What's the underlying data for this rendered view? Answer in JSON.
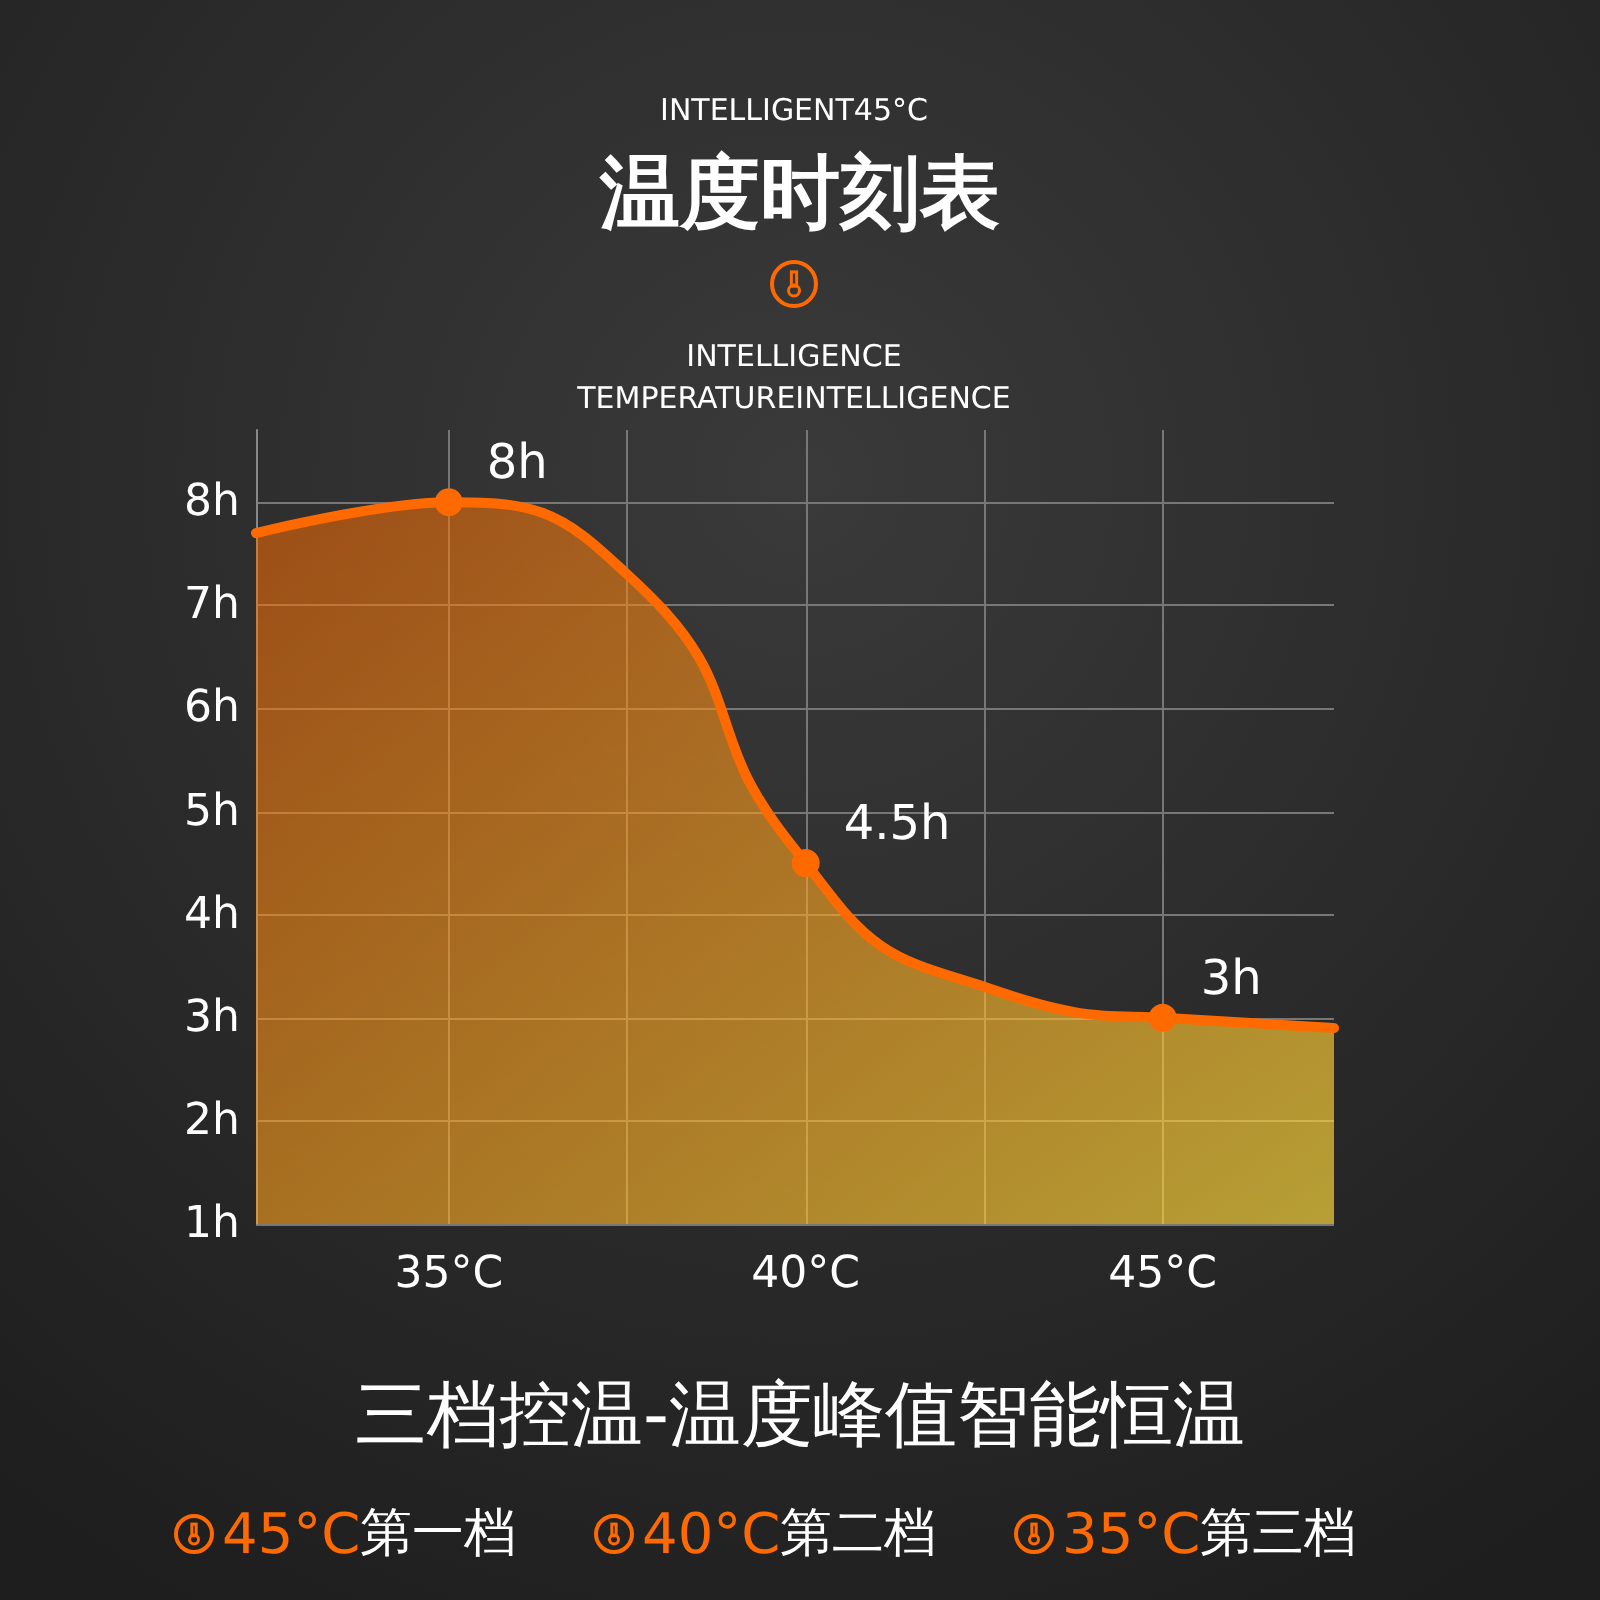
{
  "chart_data": {
    "type": "area",
    "title": "温度时刻表",
    "subtitle": "三档控温-温度峰值智能恒温",
    "annotations": [
      "INTELLIGENT45°C",
      "INTELLIGENCE",
      "TEMPERATUREINTELLIGENCE",
      "45°C第一档",
      "40°C第二档",
      "35°C第三档"
    ],
    "x": [
      32.3,
      35,
      36.3,
      37.5,
      38.5,
      39.2,
      40,
      41.05,
      42.5,
      43.8,
      45,
      47.4
    ],
    "series": [
      {
        "color": "#ff6a00",
        "values": [
          7.7,
          8,
          7.9,
          7.3,
          6.5,
          5.3,
          4.5,
          3.7,
          3.3,
          3.05,
          3,
          2.9
        ]
      },
      {
        "type": "scatter",
        "marker": "circle",
        "color": "#ff6a00",
        "x": [
          35,
          40,
          45
        ],
        "values": [
          8,
          4.5,
          3
        ],
        "value_labels": [
          "8h",
          "4.5h",
          "3h"
        ]
      }
    ],
    "xlim": [
      32.3,
      47.4
    ],
    "xticks": [
      {
        "value": 35,
        "label": "35°C"
      },
      {
        "value": 37.5,
        "label": null
      },
      {
        "value": 40,
        "label": "40°C"
      },
      {
        "value": 42.5,
        "label": null
      },
      {
        "value": 45,
        "label": "45°C"
      }
    ],
    "ylim": [
      1,
      8.7
    ],
    "yticks": [
      {
        "value": 1,
        "label": "1h"
      },
      {
        "value": 2,
        "label": "2h"
      },
      {
        "value": 3,
        "label": "3h"
      },
      {
        "value": 4,
        "label": "4h"
      },
      {
        "value": 5,
        "label": "5h"
      },
      {
        "value": 6,
        "label": "6h"
      },
      {
        "value": 7,
        "label": "7h"
      },
      {
        "value": 8,
        "label": "8h"
      }
    ],
    "grid": true,
    "line_style": "solid"
  }
}
